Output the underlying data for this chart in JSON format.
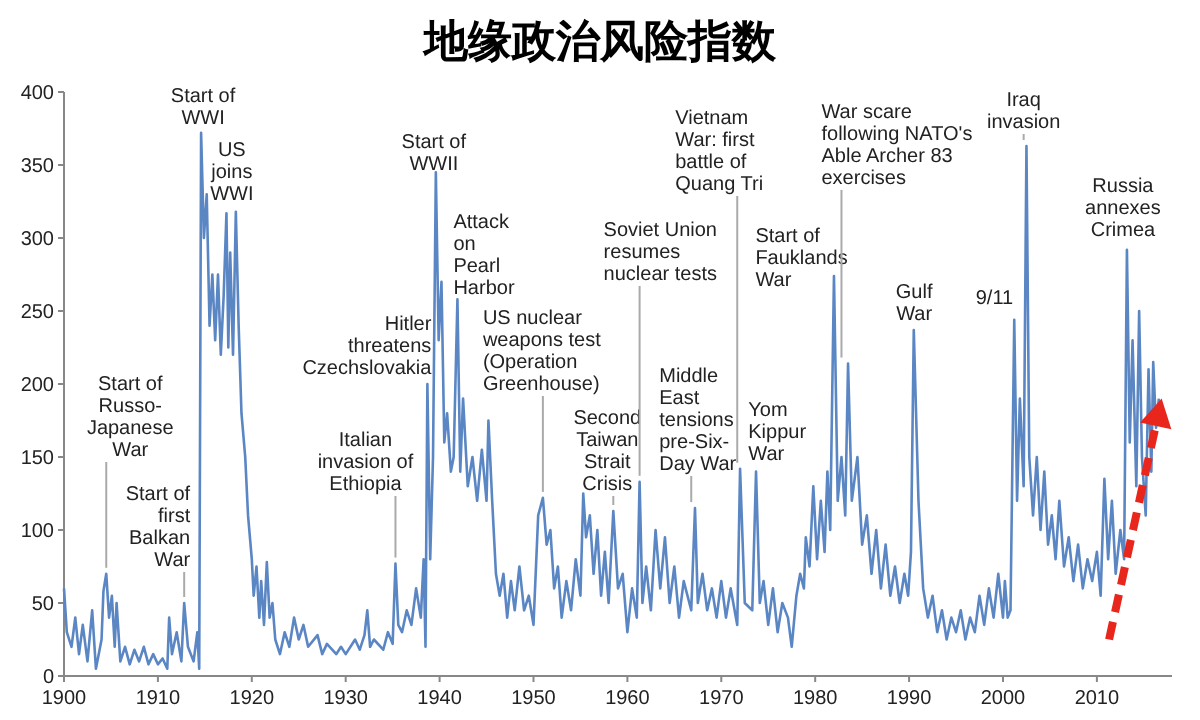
{
  "chart_data": {
    "type": "line",
    "title": "地缘政治风险指数",
    "x": [
      1900,
      1900.3,
      1900.8,
      1901.2,
      1901.6,
      1902,
      1902.5,
      1903,
      1903.4,
      1904,
      1904.2,
      1904.5,
      1904.8,
      1905.1,
      1905.4,
      1905.6,
      1906,
      1906.5,
      1907,
      1907.5,
      1908,
      1908.5,
      1909,
      1909.5,
      1910,
      1910.5,
      1911,
      1911.2,
      1911.5,
      1912,
      1912.5,
      1912.8,
      1913.2,
      1913.8,
      1914.2,
      1914.4,
      1914.6,
      1914.9,
      1915.2,
      1915.5,
      1915.8,
      1916.1,
      1916.4,
      1916.7,
      1917,
      1917.3,
      1917.5,
      1917.7,
      1918,
      1918.3,
      1918.6,
      1918.9,
      1919.3,
      1919.6,
      1920,
      1920.2,
      1920.5,
      1920.8,
      1921,
      1921.3,
      1921.6,
      1921.9,
      1922.2,
      1922.5,
      1923,
      1923.5,
      1924,
      1924.5,
      1925,
      1925.5,
      1926,
      1927,
      1927.5,
      1928,
      1929,
      1929.5,
      1930,
      1931,
      1931.5,
      1932,
      1932.3,
      1932.6,
      1933,
      1934,
      1934.5,
      1935,
      1935.3,
      1935.6,
      1936,
      1936.5,
      1937,
      1937.5,
      1938,
      1938.3,
      1938.5,
      1938.7,
      1939,
      1939.3,
      1939.6,
      1939.9,
      1940.2,
      1940.5,
      1940.8,
      1941.2,
      1941.5,
      1941.9,
      1942.2,
      1942.5,
      1943,
      1943.5,
      1944,
      1944.5,
      1945,
      1945.2,
      1945.6,
      1946,
      1946.4,
      1946.8,
      1947.2,
      1947.6,
      1948,
      1948.5,
      1949,
      1949.5,
      1950,
      1950.5,
      1951,
      1951.4,
      1951.8,
      1952.2,
      1952.6,
      1953,
      1953.5,
      1954,
      1954.5,
      1955,
      1955.3,
      1955.6,
      1956,
      1956.4,
      1956.8,
      1957.2,
      1957.6,
      1958,
      1958.5,
      1959,
      1959.5,
      1960,
      1960.5,
      1961,
      1961.3,
      1961.6,
      1962,
      1962.5,
      1963,
      1963.5,
      1964,
      1964.5,
      1965,
      1965.5,
      1966,
      1966.8,
      1967.2,
      1967.5,
      1968,
      1968.5,
      1969,
      1969.5,
      1970,
      1970.5,
      1971,
      1971.7,
      1972,
      1972.5,
      1973.3,
      1973.7,
      1974.1,
      1974.5,
      1975,
      1975.5,
      1976,
      1976.5,
      1977.1,
      1977.5,
      1978,
      1978.4,
      1978.8,
      1979,
      1979.4,
      1979.8,
      1980.2,
      1980.6,
      1981,
      1981.3,
      1981.6,
      1982,
      1982.4,
      1982.8,
      1983.2,
      1983.5,
      1983.9,
      1984.5,
      1985,
      1985.5,
      1986,
      1986.5,
      1987,
      1987.5,
      1988,
      1988.5,
      1989,
      1989.5,
      1989.9,
      1990.2,
      1990.5,
      1991,
      1991.5,
      1992,
      1992.5,
      1993,
      1993.5,
      1994,
      1994.5,
      1995,
      1995.5,
      1996,
      1996.5,
      1997,
      1997.5,
      1998,
      1998.5,
      1999,
      1999.5,
      2000,
      2000.2,
      2000.5,
      2000.8,
      2001.2,
      2001.5,
      2001.8,
      2002.2,
      2002.5,
      2002.8,
      2003.2,
      2003.6,
      2004,
      2004.4,
      2004.8,
      2005.2,
      2005.6,
      2006,
      2006.5,
      2007,
      2007.5,
      2008,
      2008.5,
      2009,
      2009.5,
      2010,
      2010.4,
      2010.8,
      2011.2,
      2011.6,
      2012,
      2012.5,
      2012.9,
      2013.2,
      2013.5,
      2013.8,
      2014.2,
      2014.5,
      2014.8,
      2015.2,
      2015.5,
      2015.8,
      2016,
      2016.3,
      2016.6
    ],
    "values": [
      60,
      30,
      20,
      40,
      15,
      35,
      10,
      45,
      5,
      25,
      58,
      70,
      40,
      55,
      20,
      50,
      10,
      20,
      8,
      18,
      10,
      20,
      8,
      15,
      8,
      12,
      5,
      40,
      15,
      30,
      10,
      50,
      20,
      10,
      30,
      5,
      372,
      300,
      330,
      240,
      275,
      230,
      275,
      220,
      260,
      317,
      225,
      290,
      220,
      318,
      240,
      180,
      150,
      110,
      80,
      55,
      75,
      40,
      65,
      35,
      78,
      40,
      50,
      25,
      15,
      30,
      20,
      40,
      25,
      35,
      20,
      28,
      15,
      22,
      15,
      20,
      15,
      25,
      18,
      28,
      45,
      20,
      25,
      18,
      30,
      22,
      77,
      35,
      30,
      45,
      35,
      60,
      40,
      80,
      20,
      200,
      80,
      150,
      345,
      230,
      270,
      160,
      180,
      140,
      150,
      258,
      140,
      190,
      130,
      150,
      120,
      155,
      120,
      175,
      120,
      70,
      55,
      70,
      40,
      65,
      45,
      75,
      45,
      55,
      35,
      110,
      122,
      90,
      100,
      60,
      75,
      40,
      65,
      45,
      80,
      55,
      125,
      95,
      110,
      70,
      100,
      55,
      85,
      50,
      113,
      60,
      70,
      30,
      60,
      40,
      133,
      50,
      75,
      45,
      100,
      60,
      95,
      50,
      75,
      40,
      65,
      45,
      115,
      50,
      70,
      45,
      60,
      40,
      65,
      40,
      60,
      35,
      142,
      50,
      45,
      140,
      50,
      65,
      35,
      60,
      30,
      50,
      40,
      20,
      55,
      70,
      60,
      95,
      75,
      130,
      80,
      120,
      85,
      140,
      100,
      274,
      120,
      150,
      110,
      214,
      120,
      150,
      90,
      110,
      70,
      100,
      60,
      90,
      55,
      75,
      50,
      70,
      55,
      85,
      237,
      120,
      60,
      40,
      55,
      30,
      45,
      25,
      40,
      30,
      45,
      25,
      40,
      30,
      55,
      35,
      60,
      40,
      70,
      40,
      65,
      40,
      45,
      244,
      120,
      190,
      130,
      363,
      150,
      110,
      150,
      100,
      140,
      90,
      110,
      80,
      120,
      75,
      95,
      65,
      90,
      60,
      80,
      65,
      85,
      55,
      135,
      80,
      120,
      70,
      100,
      80,
      292,
      160,
      230,
      130,
      250,
      150,
      110,
      210,
      140,
      215,
      170,
      190
    ],
    "color": "#5b86c4",
    "xlim": [
      1900,
      2018
    ],
    "xticks": [
      1900,
      1910,
      1920,
      1930,
      1940,
      1950,
      1960,
      1970,
      1980,
      1990,
      2000,
      2010
    ],
    "ylim": [
      0,
      400
    ],
    "yticks": [
      0,
      50,
      100,
      150,
      200,
      250,
      300,
      350,
      400
    ],
    "grid": false,
    "marker": "none",
    "line_style": "solid",
    "annotations": [
      {
        "text": "Start of\nRusso-\nJapanese\nWar",
        "x": 1904.5,
        "y": 70
      },
      {
        "text": "Start of\nfirst\nBalkan\nWar",
        "x": 1912.8,
        "y": 50
      },
      {
        "text": "Start of\nWWI",
        "x": 1914.6,
        "y": 372
      },
      {
        "text": "US\njoins\nWWI",
        "x": 1918.3,
        "y": 318
      },
      {
        "text": "Hitler\nthreatens\nCzechslovakia",
        "x": 1938.7,
        "y": 200
      },
      {
        "text": "Italian\ninvasion of\nEthiopia",
        "x": 1935.3,
        "y": 77
      },
      {
        "text": "Start of\nWWII",
        "x": 1939.6,
        "y": 345
      },
      {
        "text": "Attack\non\nPearl\nHarbor",
        "x": 1941.9,
        "y": 258
      },
      {
        "text": "US nuclear\nweapons test\n(Operation\nGreenhouse)",
        "x": 1951,
        "y": 122
      },
      {
        "text": "Second\nTaiwan\nStrait\nCrisis",
        "x": 1958.5,
        "y": 113
      },
      {
        "text": "Soviet Union\nresumes\nnuclear tests",
        "x": 1961.3,
        "y": 133
      },
      {
        "text": "Middle\nEast\ntensions\npre-Six-\nDay War",
        "x": 1966.8,
        "y": 115
      },
      {
        "text": "Vietnam\nWar: first\nbattle of\nQuang Tri",
        "x": 1971.7,
        "y": 142
      },
      {
        "text": "Yom\nKippur\nWar",
        "x": 1973.3,
        "y": 140
      },
      {
        "text": "Start of\nFauklands\nWar",
        "x": 1981.3,
        "y": 274
      },
      {
        "text": "War scare\nfollowing NATO's\nAble Archer 83\nexercises",
        "x": 1982.8,
        "y": 214
      },
      {
        "text": "Gulf\nWar",
        "x": 1989.9,
        "y": 237
      },
      {
        "text": "9/11",
        "x": 2000.8,
        "y": 244
      },
      {
        "text": "Iraq\ninvasion",
        "x": 2002.2,
        "y": 363
      },
      {
        "text": "Russia\nannexes\nCrimea",
        "x": 2013.2,
        "y": 292
      }
    ]
  }
}
